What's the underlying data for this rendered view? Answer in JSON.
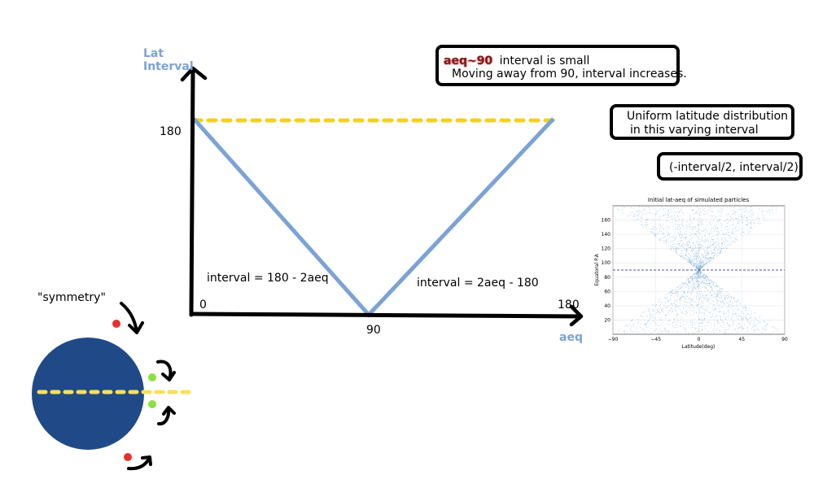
{
  "axes": {
    "y_title_line1": "Lat",
    "y_title_line2": "Interval",
    "x_title": "aeq",
    "label_180_y": "180",
    "label_0": "0",
    "label_90": "90",
    "label_180_x": "180"
  },
  "formulas": {
    "left": "interval = 180 - 2aeq",
    "right": "interval = 2aeq - 180"
  },
  "callouts": {
    "aeq_highlight": "aeq~90",
    "aeq_line1_rest": "interval is small",
    "aeq_line2": "Moving away from 90, interval increases.",
    "uniform_line1": "Uniform latitude distribution",
    "uniform_line2": "in this varying interval",
    "range": "(-interval/2, interval/2)"
  },
  "symmetry_label": "\"symmetry\"",
  "colors": {
    "v_line": "#7ba3d3",
    "dashed_180": "#f2d21a",
    "sphere": "#204a87",
    "equator_dash": "#f7e05a",
    "red_dot": "#e8312f",
    "green_dot": "#8ee03c",
    "axis": "#000000",
    "scatter": "#4a90c8",
    "ref_line": "#1a1a8a"
  },
  "inset_chart": {
    "title": "Initial lat-aeq of simulated particles",
    "xlabel": "Latitude(deg)",
    "ylabel": "Equatoral P.A",
    "x_ticks": [
      "-90",
      "-45",
      "0",
      "45",
      "90"
    ],
    "y_ticks": [
      "20",
      "40",
      "60",
      "80",
      "100",
      "120",
      "140",
      "160"
    ]
  },
  "chart_data": {
    "type": "scatter",
    "title": "Initial lat-aeq of simulated particles",
    "xlabel": "Latitude(deg)",
    "ylabel": "Equatoral P.A",
    "xlim": [
      -90,
      90
    ],
    "ylim": [
      0,
      180
    ],
    "ref_line_y": 90,
    "envelope": [
      {
        "aeq": 0,
        "lat_half_width": 90
      },
      {
        "aeq": 90,
        "lat_half_width": 0
      },
      {
        "aeq": 180,
        "lat_half_width": 90
      }
    ],
    "grid": true
  }
}
